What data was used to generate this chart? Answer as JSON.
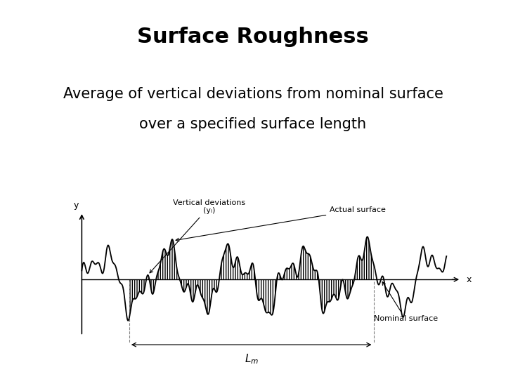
{
  "title": "Surface Roughness",
  "subtitle_line1": "Average of vertical deviations from nominal surface",
  "subtitle_line2": "over a specified surface length",
  "title_fontsize": 22,
  "subtitle_fontsize": 15,
  "bg_color": "#ffffff",
  "diagram_color": "#000000",
  "label_actual": "Actual surface",
  "label_nominal": "Nominal surface",
  "label_vertical": "Vertical deviations",
  "label_vertical2": "(yᵢ)",
  "label_Lm": "$L_m$",
  "label_x": "x",
  "label_y": "y",
  "annot_fontsize": 8
}
